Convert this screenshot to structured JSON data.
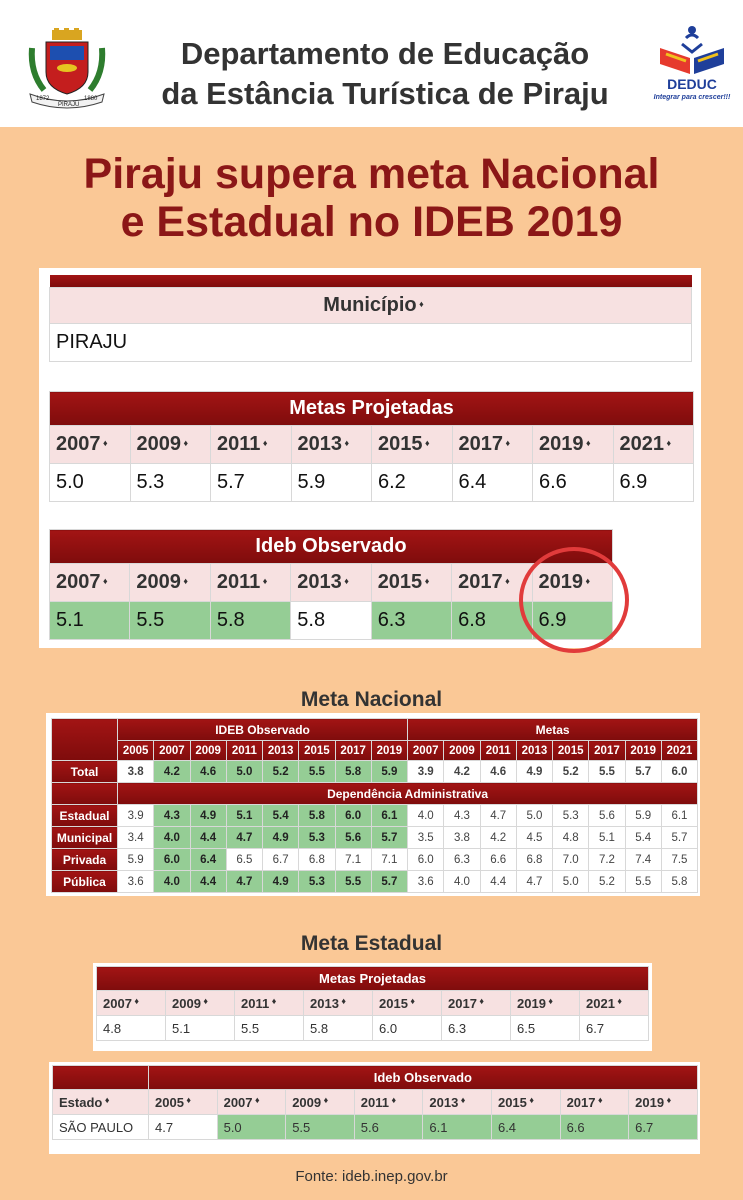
{
  "header": {
    "title_line1": "Departamento de Educação",
    "title_line2": "da Estância Turística de Piraju",
    "crest_year_left": "1872",
    "crest_year_right": "1880",
    "crest_ribbon": "PIRAJU",
    "deduc_name": "DEDUC",
    "deduc_tagline": "Integrar para crescer!!!"
  },
  "headline": {
    "line1": "Piraju supera meta Nacional",
    "line2": "e Estadual no IDEB 2019"
  },
  "municipio": {
    "header": "Município",
    "value": "PIRAJU"
  },
  "metas_projetadas": {
    "title": "Metas Projetadas",
    "years": [
      "2007",
      "2009",
      "2011",
      "2013",
      "2015",
      "2017",
      "2019",
      "2021"
    ],
    "values": [
      "5.0",
      "5.3",
      "5.7",
      "5.9",
      "6.2",
      "6.4",
      "6.6",
      "6.9"
    ]
  },
  "ideb_observado": {
    "title": "Ideb Observado",
    "years": [
      "2007",
      "2009",
      "2011",
      "2013",
      "2015",
      "2017",
      "2019"
    ],
    "values": [
      "5.1",
      "5.5",
      "5.8",
      "5.8",
      "6.3",
      "6.8",
      "6.9"
    ]
  },
  "meta_nacional": {
    "title": "Meta Nacional",
    "observed_header": "IDEB Observado",
    "metas_header": "Metas",
    "observed_years": [
      "2005",
      "2007",
      "2009",
      "2011",
      "2013",
      "2015",
      "2017",
      "2019"
    ],
    "meta_years": [
      "2007",
      "2009",
      "2011",
      "2013",
      "2015",
      "2017",
      "2019",
      "2021"
    ],
    "dependencia_header": "Dependência Administrativa",
    "total": {
      "label": "Total",
      "observed": [
        "3.8",
        "4.2",
        "4.6",
        "5.0",
        "5.2",
        "5.5",
        "5.8",
        "5.9"
      ],
      "metas": [
        "3.9",
        "4.2",
        "4.6",
        "4.9",
        "5.2",
        "5.5",
        "5.7",
        "6.0"
      ]
    },
    "rows": [
      {
        "label": "Estadual",
        "observed": [
          "3.9",
          "4.3",
          "4.9",
          "5.1",
          "5.4",
          "5.8",
          "6.0",
          "6.1"
        ],
        "metas": [
          "4.0",
          "4.3",
          "4.7",
          "5.0",
          "5.3",
          "5.6",
          "5.9",
          "6.1"
        ]
      },
      {
        "label": "Municipal",
        "observed": [
          "3.4",
          "4.0",
          "4.4",
          "4.7",
          "4.9",
          "5.3",
          "5.6",
          "5.7"
        ],
        "metas": [
          "3.5",
          "3.8",
          "4.2",
          "4.5",
          "4.8",
          "5.1",
          "5.4",
          "5.7"
        ]
      },
      {
        "label": "Privada",
        "observed": [
          "5.9",
          "6.0",
          "6.4",
          "6.5",
          "6.7",
          "6.8",
          "7.1",
          "7.1"
        ],
        "metas": [
          "6.0",
          "6.3",
          "6.6",
          "6.8",
          "7.0",
          "7.2",
          "7.4",
          "7.5"
        ]
      },
      {
        "label": "Pública",
        "observed": [
          "3.6",
          "4.0",
          "4.4",
          "4.7",
          "4.9",
          "5.3",
          "5.5",
          "5.7"
        ],
        "metas": [
          "3.6",
          "4.0",
          "4.4",
          "4.7",
          "5.0",
          "5.2",
          "5.5",
          "5.8"
        ]
      }
    ]
  },
  "meta_estadual": {
    "title": "Meta Estadual",
    "metas_projetadas": {
      "title": "Metas Projetadas",
      "years": [
        "2007",
        "2009",
        "2011",
        "2013",
        "2015",
        "2017",
        "2019",
        "2021"
      ],
      "values": [
        "4.8",
        "5.1",
        "5.5",
        "5.8",
        "6.0",
        "6.3",
        "6.5",
        "6.7"
      ]
    },
    "ideb_observado": {
      "title": "Ideb Observado",
      "estado_header": "Estado",
      "estado": "SÃO PAULO",
      "years": [
        "2005",
        "2007",
        "2009",
        "2011",
        "2013",
        "2015",
        "2017",
        "2019"
      ],
      "values": [
        "4.7",
        "5.0",
        "5.5",
        "5.6",
        "6.1",
        "6.4",
        "6.6",
        "6.7"
      ]
    }
  },
  "fonte": "Fonte: ideb.inep.gov.br",
  "colors": {
    "background": "#fac896",
    "headline": "#8b1717",
    "bar_red": "#8f1010",
    "header_pink": "#f7e1e1",
    "green": "#95cd95",
    "highlight_circle": "#e13b3b"
  }
}
